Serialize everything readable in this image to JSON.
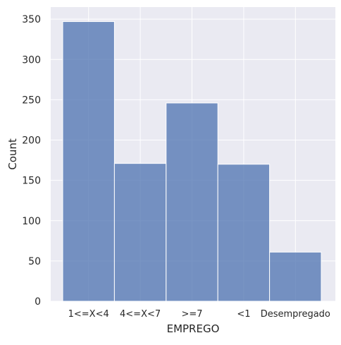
{
  "chart_data": {
    "type": "bar",
    "categories": [
      "1<=X<4",
      "4<=X<7",
      ">=7",
      "<1",
      "Desempregado"
    ],
    "values": [
      347,
      171,
      246,
      170,
      61
    ],
    "xlabel": "EMPREGO",
    "ylabel": "Count",
    "ylim": [
      0,
      365
    ],
    "yticks": [
      0,
      50,
      100,
      150,
      200,
      250,
      300,
      350
    ],
    "grid": true,
    "bar_color": "#4c72b0",
    "background_color": "#eaeaf2",
    "grid_color": "#ffffff"
  }
}
